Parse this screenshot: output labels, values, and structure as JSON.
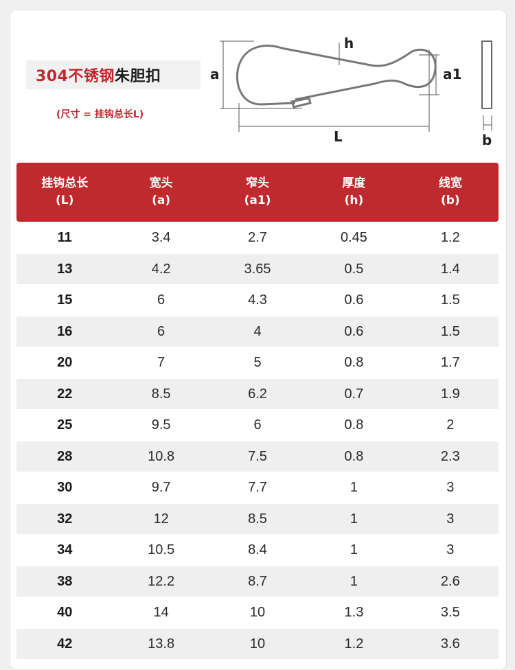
{
  "title": {
    "red_part": "304不锈钢",
    "black_part": "朱胆扣"
  },
  "subtitle": "(尺寸 = 挂钩总长L)",
  "diagram": {
    "labels": {
      "a": "a",
      "h": "h",
      "a1": "a1",
      "L": "L",
      "b": "b"
    }
  },
  "table": {
    "headers": [
      {
        "cn": "挂钩总长",
        "sym": "(L)"
      },
      {
        "cn": "宽头",
        "sym": "(a)"
      },
      {
        "cn": "窄头",
        "sym": "(a1)"
      },
      {
        "cn": "厚度",
        "sym": "(h)"
      },
      {
        "cn": "线宽",
        "sym": "(b)"
      }
    ],
    "rows": [
      [
        "11",
        "3.4",
        "2.7",
        "0.45",
        "1.2"
      ],
      [
        "13",
        "4.2",
        "3.65",
        "0.5",
        "1.4"
      ],
      [
        "15",
        "6",
        "4.3",
        "0.6",
        "1.5"
      ],
      [
        "16",
        "6",
        "4",
        "0.6",
        "1.5"
      ],
      [
        "20",
        "7",
        "5",
        "0.8",
        "1.7"
      ],
      [
        "22",
        "8.5",
        "6.2",
        "0.7",
        "1.9"
      ],
      [
        "25",
        "9.5",
        "6",
        "0.8",
        "2"
      ],
      [
        "28",
        "10.8",
        "7.5",
        "0.8",
        "2.3"
      ],
      [
        "30",
        "9.7",
        "7.7",
        "1",
        "3"
      ],
      [
        "32",
        "12",
        "8.5",
        "1",
        "3"
      ],
      [
        "34",
        "10.5",
        "8.4",
        "1",
        "3"
      ],
      [
        "38",
        "12.2",
        "8.7",
        "1",
        "2.6"
      ],
      [
        "40",
        "14",
        "10",
        "1.3",
        "3.5"
      ],
      [
        "42",
        "13.8",
        "10",
        "1.2",
        "3.6"
      ]
    ]
  },
  "colors": {
    "accent": "#bf2a2f",
    "stripe": "#efefef"
  }
}
